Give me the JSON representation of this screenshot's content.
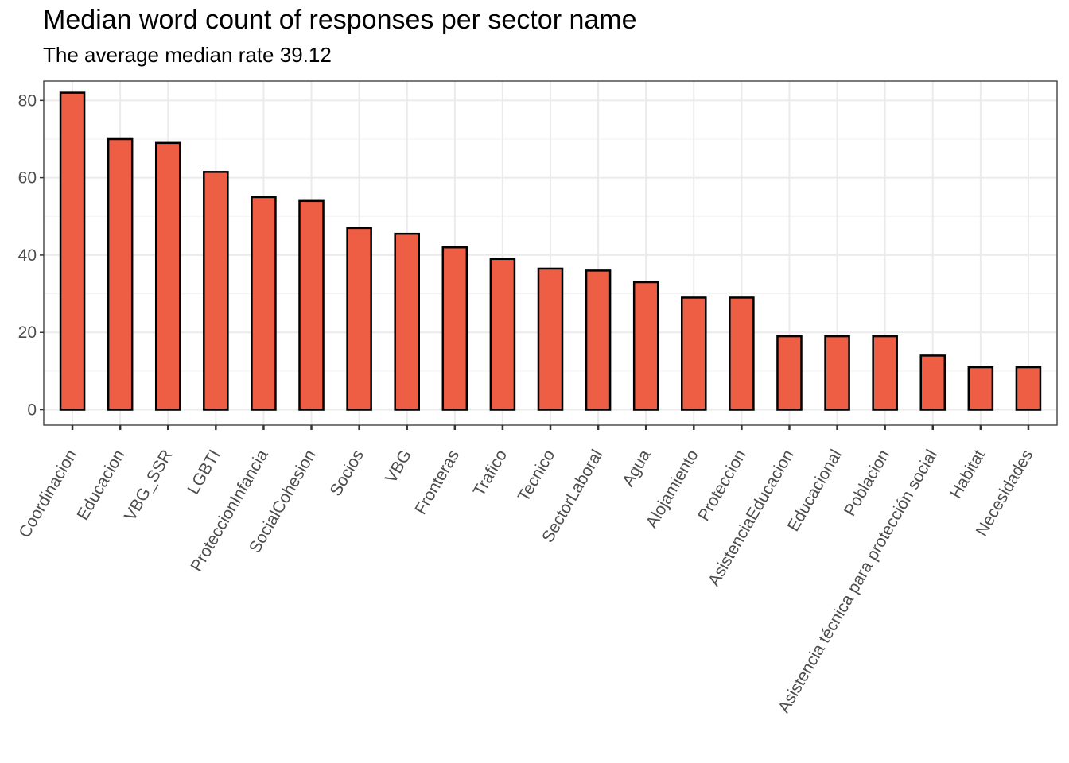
{
  "chart_data": {
    "type": "bar",
    "title": "Median word count of responses per sector name",
    "subtitle": "The average median rate 39.12",
    "xlabel": "",
    "ylabel": "",
    "ylim": [
      -4,
      85
    ],
    "yticks": [
      0,
      20,
      40,
      60,
      80
    ],
    "grid": true,
    "bar_color": "#EE5E44",
    "bar_edge_color": "#000000",
    "categories": [
      "Coordinacion",
      "Educacion",
      "VBG_SSR",
      "LGBTI",
      "ProteccionInfancia",
      "SocialCohesion",
      "Socios",
      "VBG",
      "Fronteras",
      "Trafico",
      "Tecnico",
      "SectorLaboral",
      "Agua",
      "Alojamiento",
      "Proteccion",
      "AsistenciaEducacion",
      "Educacional",
      "Poblacion",
      "Asistencia técnica para protección social",
      "Habitat",
      "Necesidades"
    ],
    "values": [
      82,
      70,
      69,
      61.5,
      55,
      54,
      47,
      45.5,
      42,
      39,
      36.5,
      36,
      33,
      29,
      29,
      19,
      19,
      19,
      14,
      11,
      11
    ]
  }
}
